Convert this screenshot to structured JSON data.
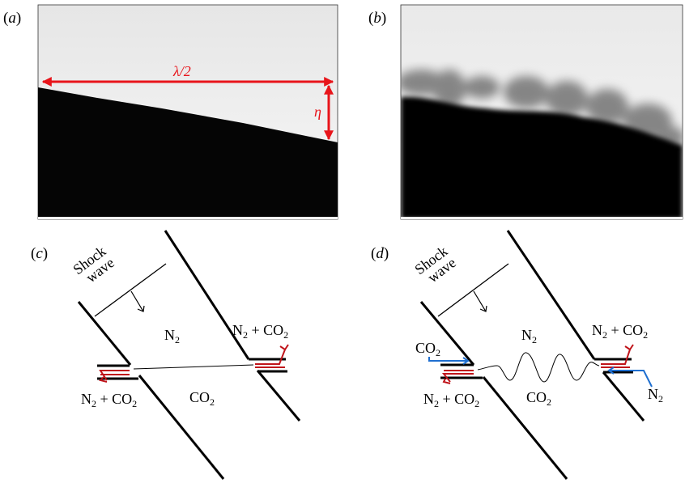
{
  "panels": {
    "a": {
      "label": "(a)",
      "wavelength_label": "λ/2",
      "amplitude_label": "η"
    },
    "b": {
      "label": "(b)"
    },
    "c": {
      "label": "(c)",
      "shock_label_1": "Shock",
      "shock_label_2": "wave",
      "upper_gas": "N",
      "upper_gas_sub": "2",
      "lower_gas": "CO",
      "lower_gas_sub": "2",
      "right_exhaust": {
        "a": "N",
        "a_sub": "2",
        "plus": " + CO",
        "b_sub": "2"
      },
      "left_exhaust": {
        "a": "N",
        "a_sub": "2",
        "plus": " + CO",
        "b_sub": "2"
      }
    },
    "d": {
      "label": "(d)",
      "shock_label_1": "Shock",
      "shock_label_2": "wave",
      "upper_gas": "N",
      "upper_gas_sub": "2",
      "lower_gas": "CO",
      "lower_gas_sub": "2",
      "right_exhaust": {
        "a": "N",
        "a_sub": "2",
        "plus": " + CO",
        "b_sub": "2"
      },
      "left_exhaust": {
        "a": "N",
        "a_sub": "2",
        "plus": " + CO",
        "b_sub": "2"
      },
      "left_inlet": {
        "a": "CO",
        "a_sub": "2"
      },
      "right_inlet": {
        "a": "N",
        "a_sub": "2"
      }
    }
  },
  "colors": {
    "annotation": "#e8141a",
    "blue": "#1f6fd0",
    "red": "#c0141a"
  }
}
